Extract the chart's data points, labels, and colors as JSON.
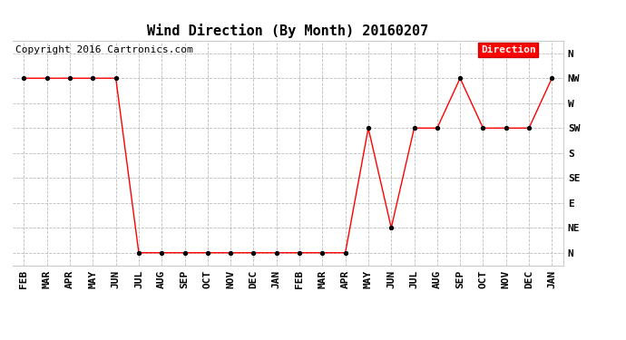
{
  "title": "Wind Direction (By Month) 20160207",
  "copyright": "Copyright 2016 Cartronics.com",
  "x_labels": [
    "FEB",
    "MAR",
    "APR",
    "MAY",
    "JUN",
    "JUL",
    "AUG",
    "SEP",
    "OCT",
    "NOV",
    "DEC",
    "JAN",
    "FEB",
    "MAR",
    "APR",
    "MAY",
    "JUN",
    "JUL",
    "AUG",
    "SEP",
    "OCT",
    "NOV",
    "DEC",
    "JAN"
  ],
  "y_labels": [
    "N",
    "NE",
    "E",
    "SE",
    "S",
    "SW",
    "W",
    "NW",
    "N"
  ],
  "y_values": [
    0,
    1,
    2,
    3,
    4,
    5,
    6,
    7,
    8
  ],
  "direction_values": [
    7,
    7,
    7,
    7,
    7,
    0,
    0,
    0,
    0,
    0,
    0,
    0,
    0,
    0,
    0,
    5,
    1,
    5,
    5,
    7,
    5,
    5,
    5,
    7
  ],
  "line_color": "#ff0000",
  "marker_color": "#000000",
  "bg_color": "#ffffff",
  "grid_color": "#bbbbbb",
  "legend_bg": "#ff0000",
  "legend_text_color": "#ffffff",
  "legend_label": "Direction",
  "title_fontsize": 11,
  "copyright_fontsize": 8,
  "axis_label_fontsize": 8
}
